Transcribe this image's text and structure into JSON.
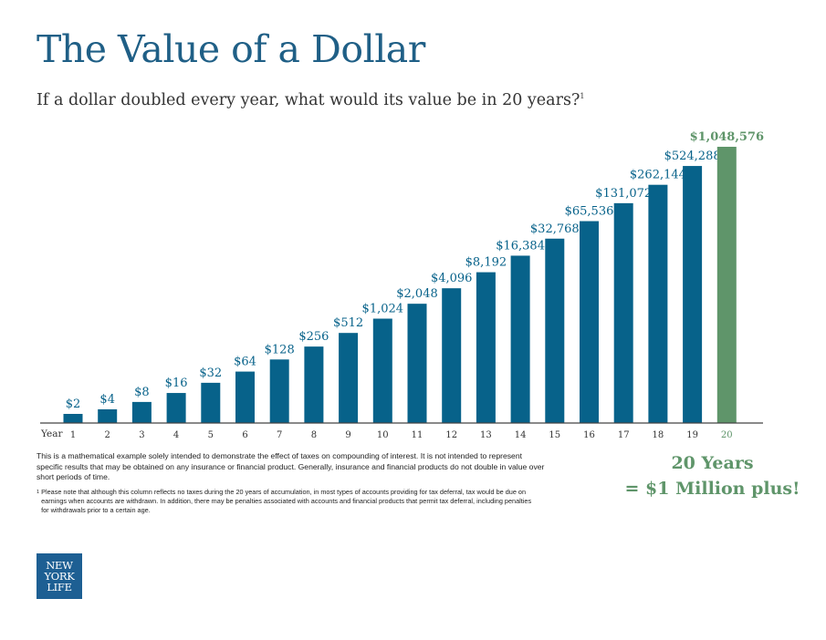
{
  "title": "The Value of a Dollar",
  "subtitle": "If a dollar doubled every year, what would its value be in 20 years?",
  "subtitle_footnote_mark": "1",
  "colors": {
    "title": "#1f5f86",
    "bar": "#07628a",
    "highlight": "#5f956a",
    "axis": "#444444"
  },
  "chart_data": {
    "type": "bar",
    "title": "The Value of a Dollar",
    "xlabel": "Year",
    "ylabel": "",
    "categories": [
      "1",
      "2",
      "3",
      "4",
      "5",
      "6",
      "7",
      "8",
      "9",
      "10",
      "11",
      "12",
      "13",
      "14",
      "15",
      "16",
      "17",
      "18",
      "19",
      "20"
    ],
    "values": [
      2,
      4,
      8,
      16,
      32,
      64,
      128,
      256,
      512,
      1024,
      2048,
      4096,
      8192,
      16384,
      32768,
      65536,
      131072,
      262144,
      524288,
      1048576
    ],
    "value_labels": [
      "$2",
      "$4",
      "$8",
      "$16",
      "$32",
      "$64",
      "$128",
      "$256",
      "$512",
      "$1,024",
      "$2,048",
      "$4,096",
      "$8,192",
      "$16,384",
      "$32,768",
      "$65,536",
      "$131,072",
      "$262,144",
      "$524,288",
      "$1,048,576"
    ],
    "highlight_category": "20",
    "grid": false,
    "legend": "none"
  },
  "callout": {
    "line1": "20 Years",
    "line2": "= $1 Million plus!"
  },
  "disclaimer": "This is a mathematical example solely intended to demonstrate the effect of taxes on compounding of interest. It is not intended to represent specific results that may be obtained on any insurance or financial product. Generally, insurance and financial products do not double in value over short periods of time.",
  "footnote_mark": "1",
  "footnote": "Please note that although this column reflects no taxes during the 20 years of accumulation, in most types of accounts providing for tax deferral, tax would be due on earnings when accounts are withdrawn. In addition, there may be penalties associated with accounts and financial products that permit tax deferral, including penalties for withdrawals prior to a certain age.",
  "logo": {
    "line1": "NEW",
    "line2": "YORK",
    "line3": "LIFE"
  }
}
